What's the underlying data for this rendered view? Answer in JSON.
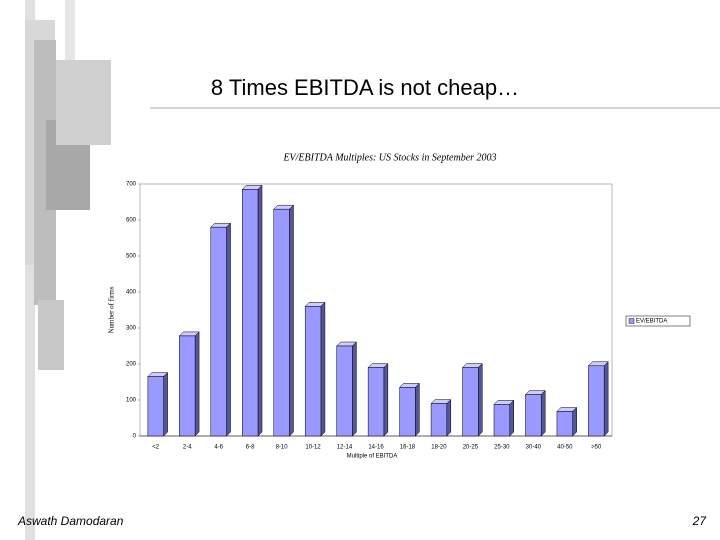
{
  "slide": {
    "title": "8 Times EBITDA is not cheap…",
    "author": "Aswath Damodaran",
    "page": "27"
  },
  "chart_data": {
    "type": "bar",
    "title": "EV/EBITDA Multiples: US Stocks in September 2003",
    "x_label": "Multiple of EBITDA",
    "y_label": "Number of firms",
    "categories": [
      "<2",
      "2-4",
      "4-6",
      "6-8",
      "8-10",
      "10-12",
      "12-14",
      "14-16",
      "16-18",
      "18-20",
      "20-25",
      "25-30",
      "30-40",
      "40-50",
      ">50"
    ],
    "series": [
      {
        "name": "EV/EBITDA",
        "color": "#9999ff",
        "values": [
          165,
          278,
          580,
          685,
          630,
          360,
          250,
          190,
          135,
          90,
          190,
          88,
          115,
          68,
          195
        ]
      }
    ],
    "ylim": [
      0,
      700
    ],
    "yticks": [
      0,
      100,
      200,
      300,
      400,
      500,
      600,
      700
    ],
    "legend": "right"
  }
}
